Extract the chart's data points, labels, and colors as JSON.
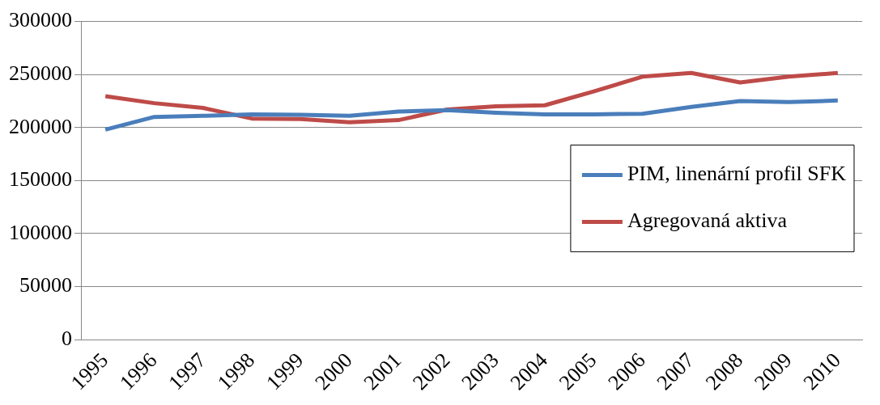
{
  "chart_data": {
    "type": "line",
    "categories": [
      "1995",
      "1996",
      "1997",
      "1998",
      "1999",
      "2000",
      "2001",
      "2002",
      "2003",
      "2004",
      "2005",
      "2006",
      "2007",
      "2008",
      "2009",
      "2010"
    ],
    "series": [
      {
        "name": "PIM, linenární profil SFK",
        "color": "#4a7ebb",
        "values": [
          198000,
          210000,
          211000,
          212500,
          212000,
          211000,
          215000,
          216500,
          214000,
          212500,
          212500,
          213000,
          219500,
          225000,
          224000,
          225500
        ]
      },
      {
        "name": "Agregovaná aktiva",
        "color": "#be4b48",
        "values": [
          229500,
          223000,
          218500,
          208500,
          208000,
          205000,
          207000,
          217000,
          220000,
          221000,
          234000,
          248000,
          251500,
          242500,
          248000,
          251500
        ]
      }
    ],
    "ylim": [
      0,
      300000
    ],
    "yticks": [
      0,
      50000,
      100000,
      150000,
      200000,
      250000,
      300000
    ],
    "grid": "y",
    "legend": "right",
    "marker": "none",
    "line_style": "solid"
  }
}
